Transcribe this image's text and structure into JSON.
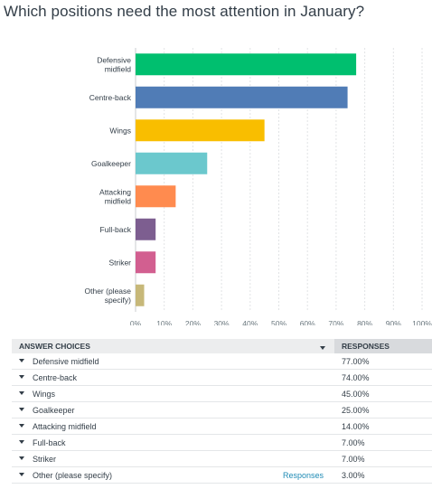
{
  "question": "Which positions need the most attention in January?",
  "chart_data": {
    "type": "bar",
    "orientation": "horizontal",
    "categories": [
      "Defensive midfield",
      "Centre-back",
      "Wings",
      "Goalkeeper",
      "Attacking midfield",
      "Full-back",
      "Striker",
      "Other (please specify)"
    ],
    "category_lines": [
      [
        "Defensive",
        "midfield"
      ],
      [
        "Centre-back"
      ],
      [
        "Wings"
      ],
      [
        "Goalkeeper"
      ],
      [
        "Attacking",
        "midfield"
      ],
      [
        "Full-back"
      ],
      [
        "Striker"
      ],
      [
        "Other (please",
        "specify)"
      ]
    ],
    "values": [
      77,
      74,
      45,
      25,
      14,
      7,
      7,
      3
    ],
    "colors": [
      "#00bf6f",
      "#507cb6",
      "#f9be00",
      "#6bc8cd",
      "#ff8b4f",
      "#7d5e90",
      "#d25f90",
      "#c7b879"
    ],
    "xlim": [
      0,
      100
    ],
    "xticks": [
      "0%",
      "10%",
      "20%",
      "30%",
      "40%",
      "50%",
      "60%",
      "70%",
      "80%",
      "90%",
      "100%"
    ],
    "grid": true
  },
  "table": {
    "header_choices": "ANSWER CHOICES",
    "header_responses": "RESPONSES",
    "rows": [
      {
        "label": "Defensive midfield",
        "value": "77.00%"
      },
      {
        "label": "Centre-back",
        "value": "74.00%"
      },
      {
        "label": "Wings",
        "value": "45.00%"
      },
      {
        "label": "Goalkeeper",
        "value": "25.00%"
      },
      {
        "label": "Attacking midfield",
        "value": "14.00%"
      },
      {
        "label": "Full-back",
        "value": "7.00%"
      },
      {
        "label": "Striker",
        "value": "7.00%"
      },
      {
        "label": "Other (please specify)",
        "value": "3.00%",
        "link": "Responses"
      }
    ]
  }
}
